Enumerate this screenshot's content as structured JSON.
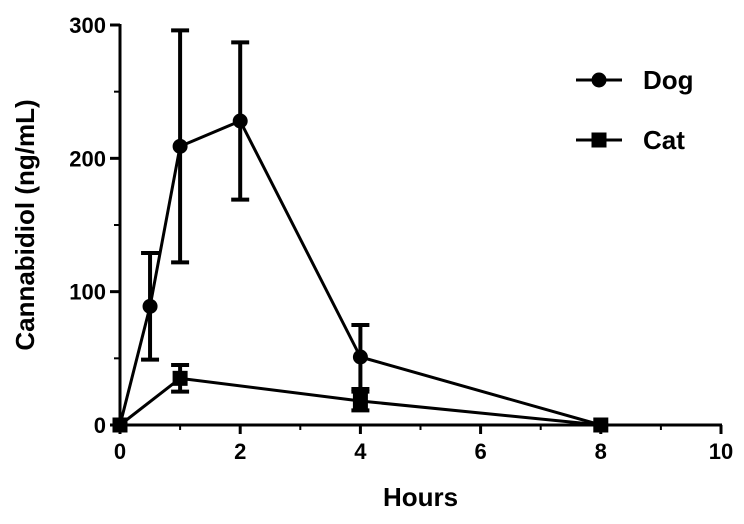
{
  "chart_data": {
    "type": "line",
    "title": "",
    "xlabel": "Hours",
    "ylabel": "Cannabidiol (ng/mL)",
    "xlim": [
      0,
      10
    ],
    "ylim": [
      0,
      300
    ],
    "x_ticks": [
      "0",
      "2",
      "4",
      "6",
      "8",
      "10"
    ],
    "y_ticks": [
      "0",
      "100",
      "200",
      "300"
    ],
    "grid": false,
    "legend_position": "top-right",
    "series": [
      {
        "name": "Dog",
        "marker": "circle",
        "color": "#000000",
        "points": [
          {
            "x": 0,
            "y": 0,
            "err": 0
          },
          {
            "x": 0.5,
            "y": 89,
            "err": 40
          },
          {
            "x": 1,
            "y": 209,
            "err": 87
          },
          {
            "x": 2,
            "y": 228,
            "err": 59
          },
          {
            "x": 4,
            "y": 51,
            "err": 24
          },
          {
            "x": 8,
            "y": 0,
            "err": 0
          }
        ]
      },
      {
        "name": "Cat",
        "marker": "square",
        "color": "#000000",
        "points": [
          {
            "x": 0,
            "y": 0,
            "err": 0
          },
          {
            "x": 1,
            "y": 35,
            "err": 10
          },
          {
            "x": 4,
            "y": 18,
            "err": 7
          },
          {
            "x": 8,
            "y": 0,
            "err": 0
          }
        ]
      }
    ]
  }
}
